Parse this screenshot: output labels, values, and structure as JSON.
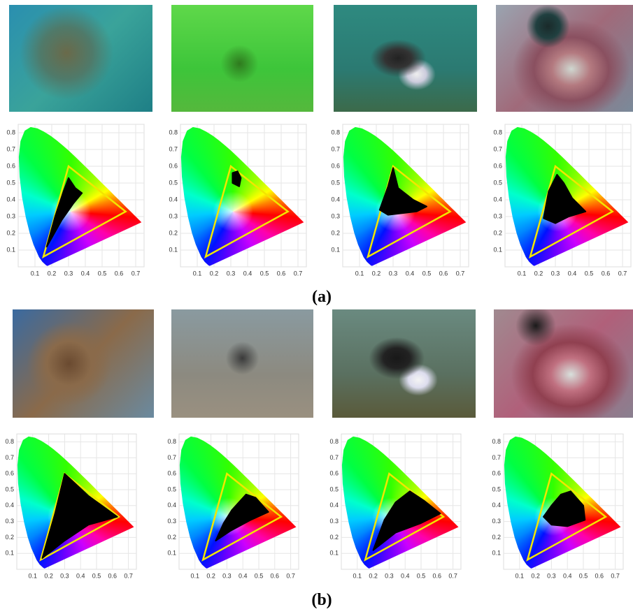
{
  "figure": {
    "panels": [
      {
        "label": "(a)"
      },
      {
        "label": "(b)"
      }
    ],
    "axes": {
      "xlim": [
        0,
        0.75
      ],
      "ylim": [
        0,
        0.85
      ],
      "xticks": [
        0.1,
        0.2,
        0.3,
        0.4,
        0.5,
        0.6,
        0.7
      ],
      "yticks": [
        0.1,
        0.2,
        0.3,
        0.4,
        0.5,
        0.6,
        0.7,
        0.8
      ]
    }
  }
}
